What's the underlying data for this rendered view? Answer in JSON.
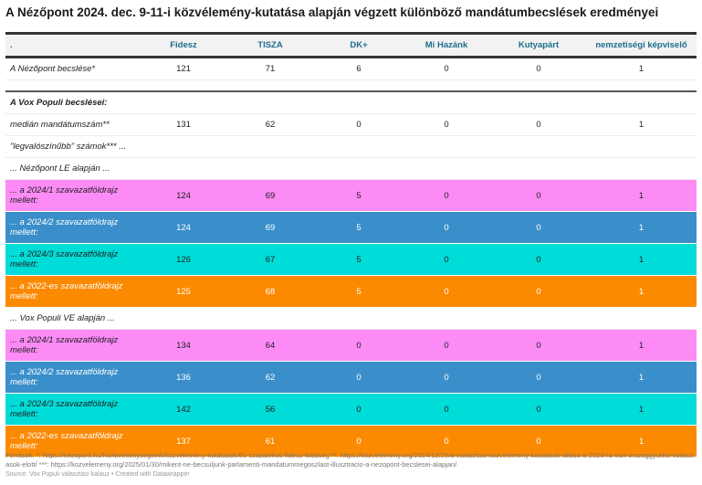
{
  "title": "A Nézőpont 2024. dec. 9-11-i közvélemény-kutatása alapján végzett különböző mandátumbecslések eredményei",
  "columns": [
    ".",
    "Fidesz",
    "TISZA",
    "DK+",
    "Mi Hazánk",
    "Kutyapárt",
    "nemzetiségi képviselő"
  ],
  "colors": {
    "pink": "#fc8bf6",
    "blue": "#3a8fca",
    "cyan": "#00dcd8",
    "orange": "#fb8a00"
  },
  "rows": [
    {
      "label": "A Nézőpont becslése*",
      "values": [
        "121",
        "71",
        "6",
        "0",
        "0",
        "1"
      ]
    },
    {
      "label": "A Vox Populi becslései:",
      "values": [
        "",
        "",
        "",
        "",
        "",
        ""
      ]
    },
    {
      "label": "medián mandátumszám**",
      "values": [
        "131",
        "62",
        "0",
        "0",
        "0",
        "1"
      ]
    },
    {
      "label": "\"legvalószínűbb\" számok*** ...",
      "values": [
        "",
        "",
        "",
        "",
        "",
        ""
      ]
    },
    {
      "label": "... Nézőpont LE alapján ...",
      "values": [
        "",
        "",
        "",
        "",
        "",
        ""
      ]
    },
    {
      "label": "... a 2024/1 szavazatföldrajz mellett:",
      "color": "pink",
      "values": [
        "124",
        "69",
        "5",
        "0",
        "0",
        "1"
      ]
    },
    {
      "label": "... a 2024/2 szavazatföldrajz mellett:",
      "color": "blue",
      "values": [
        "124",
        "69",
        "5",
        "0",
        "0",
        "1"
      ]
    },
    {
      "label": "... a 2024/3 szavazatföldrajz mellett:",
      "color": "cyan",
      "values": [
        "126",
        "67",
        "5",
        "0",
        "0",
        "1"
      ]
    },
    {
      "label": "... a 2022-es szavazatföldrajz mellett:",
      "color": "orange",
      "values": [
        "125",
        "68",
        "5",
        "0",
        "0",
        "1"
      ]
    },
    {
      "label": "... Vox Populi VE alapján ...",
      "values": [
        "",
        "",
        "",
        "",
        "",
        ""
      ]
    },
    {
      "label": "... a 2024/1 szavazatföldrajz mellett:",
      "color": "pink",
      "values": [
        "134",
        "64",
        "0",
        "0",
        "0",
        "1"
      ]
    },
    {
      "label": "... a 2024/2 szavazatföldrajz mellett:",
      "color": "blue",
      "values": [
        "136",
        "62",
        "0",
        "0",
        "0",
        "1"
      ]
    },
    {
      "label": "... a 2024/3 szavazatföldrajz mellett:",
      "color": "cyan",
      "values": [
        "142",
        "56",
        "0",
        "0",
        "0",
        "1"
      ]
    },
    {
      "label": "... a 2022-es szavazatföldrajz mellett:",
      "color": "orange",
      "values": [
        "137",
        "61",
        "0",
        "0",
        "0",
        "1"
      ]
    }
  ],
  "footer": {
    "notes": "Források: *: https://nezopont.hu/hu/tevekenysegeink/kozvelemeny-kutatasok/61-szazalekos-fidesz-tobbseg **: https://kozvelemeny.org/2024/12/25/a-valasztasi-kozvelemeny-kutatasok-allasa-a-2026-ra-vart-orszaggyulesi-valasztasok-elott/ ***: https://kozvelemeny.org/2025/01/30/mikent-ne-becsuljunk-parlamenti-mandatummegoszlast-illusztracio-a-nezopont-becslesei-alapjan/",
    "source": "Source: Vox Populi választási kalauz • Created with Datawrapper"
  }
}
